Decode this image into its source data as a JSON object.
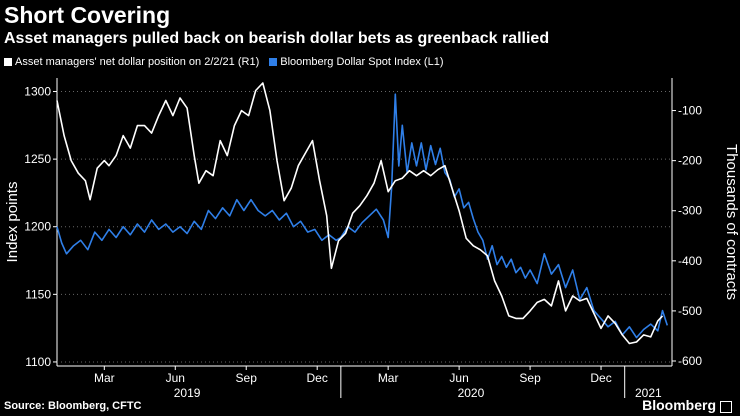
{
  "header": {
    "title": "Short Covering",
    "subtitle": "Asset managers pulled back on bearish dollar bets as greenback rallied"
  },
  "legend": [
    {
      "label": "Asset managers' net dollar position on 2/2/21 (R1)",
      "color": "#ffffff"
    },
    {
      "label": "Bloomberg Dollar Spot Index (L1)",
      "color": "#2f7fe8"
    }
  ],
  "footer": {
    "source": "Source: Bloomberg, CFTC",
    "logo": "Bloomberg"
  },
  "chart_data": {
    "type": "line",
    "time_range": [
      0,
      26
    ],
    "x_month_ticks": [
      "Mar",
      "Jun",
      "Sep",
      "Dec",
      "Mar",
      "Jun",
      "Sep",
      "Dec"
    ],
    "x_month_tick_positions": [
      2,
      5,
      8,
      11,
      14,
      17,
      20,
      23
    ],
    "x_year_labels": [
      {
        "label": "2019",
        "center": 5.5
      },
      {
        "label": "2020",
        "center": 17.5
      },
      {
        "label": "2021",
        "center": 25
      }
    ],
    "year_dividers": [
      12,
      24
    ],
    "y_left": {
      "label": "Index points",
      "ticks": [
        1100,
        1150,
        1200,
        1250,
        1300
      ],
      "range": [
        1097,
        1310
      ]
    },
    "y_right": {
      "label": "Thousands of contracts",
      "ticks": [
        "-600",
        "-500",
        "-400",
        "-300",
        "-200",
        "-100"
      ],
      "tick_values": [
        -600,
        -500,
        -400,
        -300,
        -200,
        -100
      ],
      "range": [
        -610,
        -35
      ]
    },
    "grid": "dotted",
    "series": [
      {
        "name": "Bloomberg Dollar Spot Index (L1)",
        "axis": "left",
        "color": "#2f7fe8",
        "points": [
          [
            0,
            1200
          ],
          [
            0.2,
            1188
          ],
          [
            0.4,
            1180
          ],
          [
            0.7,
            1186
          ],
          [
            1.0,
            1190
          ],
          [
            1.3,
            1183
          ],
          [
            1.6,
            1196
          ],
          [
            1.9,
            1190
          ],
          [
            2.2,
            1198
          ],
          [
            2.5,
            1192
          ],
          [
            2.8,
            1200
          ],
          [
            3.1,
            1194
          ],
          [
            3.4,
            1202
          ],
          [
            3.7,
            1196
          ],
          [
            4.0,
            1205
          ],
          [
            4.3,
            1198
          ],
          [
            4.6,
            1202
          ],
          [
            4.9,
            1196
          ],
          [
            5.2,
            1200
          ],
          [
            5.5,
            1195
          ],
          [
            5.8,
            1204
          ],
          [
            6.1,
            1198
          ],
          [
            6.4,
            1212
          ],
          [
            6.7,
            1206
          ],
          [
            7.0,
            1214
          ],
          [
            7.3,
            1208
          ],
          [
            7.6,
            1220
          ],
          [
            7.9,
            1212
          ],
          [
            8.2,
            1220
          ],
          [
            8.5,
            1212
          ],
          [
            8.8,
            1208
          ],
          [
            9.1,
            1212
          ],
          [
            9.4,
            1205
          ],
          [
            9.7,
            1210
          ],
          [
            10.0,
            1200
          ],
          [
            10.3,
            1204
          ],
          [
            10.6,
            1196
          ],
          [
            10.9,
            1198
          ],
          [
            11.2,
            1190
          ],
          [
            11.5,
            1194
          ],
          [
            11.8,
            1190
          ],
          [
            12.0,
            1192
          ],
          [
            12.3,
            1200
          ],
          [
            12.6,
            1196
          ],
          [
            12.9,
            1203
          ],
          [
            13.2,
            1208
          ],
          [
            13.5,
            1213
          ],
          [
            13.8,
            1205
          ],
          [
            14.0,
            1192
          ],
          [
            14.15,
            1230
          ],
          [
            14.3,
            1298
          ],
          [
            14.45,
            1245
          ],
          [
            14.6,
            1275
          ],
          [
            14.8,
            1240
          ],
          [
            15.0,
            1262
          ],
          [
            15.2,
            1245
          ],
          [
            15.4,
            1262
          ],
          [
            15.6,
            1242
          ],
          [
            15.8,
            1260
          ],
          [
            16.0,
            1246
          ],
          [
            16.2,
            1258
          ],
          [
            16.4,
            1240
          ],
          [
            16.6,
            1235
          ],
          [
            16.8,
            1222
          ],
          [
            17.0,
            1228
          ],
          [
            17.2,
            1214
          ],
          [
            17.4,
            1218
          ],
          [
            17.6,
            1206
          ],
          [
            17.8,
            1196
          ],
          [
            18.0,
            1190
          ],
          [
            18.2,
            1176
          ],
          [
            18.4,
            1186
          ],
          [
            18.6,
            1172
          ],
          [
            18.8,
            1178
          ],
          [
            19.0,
            1170
          ],
          [
            19.2,
            1176
          ],
          [
            19.4,
            1166
          ],
          [
            19.6,
            1170
          ],
          [
            19.8,
            1162
          ],
          [
            20.0,
            1168
          ],
          [
            20.3,
            1158
          ],
          [
            20.6,
            1180
          ],
          [
            20.9,
            1165
          ],
          [
            21.2,
            1172
          ],
          [
            21.5,
            1155
          ],
          [
            21.8,
            1168
          ],
          [
            22.1,
            1146
          ],
          [
            22.4,
            1155
          ],
          [
            22.7,
            1138
          ],
          [
            23.0,
            1132
          ],
          [
            23.3,
            1126
          ],
          [
            23.6,
            1130
          ],
          [
            23.9,
            1120
          ],
          [
            24.2,
            1126
          ],
          [
            24.5,
            1118
          ],
          [
            24.8,
            1124
          ],
          [
            25.1,
            1128
          ],
          [
            25.4,
            1123
          ],
          [
            25.6,
            1138
          ],
          [
            25.8,
            1127
          ]
        ]
      },
      {
        "name": "Asset managers' net dollar position on 2/2/21 (R1)",
        "axis": "right",
        "color": "#ffffff",
        "points": [
          [
            0,
            -80
          ],
          [
            0.3,
            -150
          ],
          [
            0.6,
            -200
          ],
          [
            0.9,
            -225
          ],
          [
            1.2,
            -240
          ],
          [
            1.4,
            -278
          ],
          [
            1.7,
            -215
          ],
          [
            2.0,
            -200
          ],
          [
            2.2,
            -210
          ],
          [
            2.5,
            -190
          ],
          [
            2.8,
            -150
          ],
          [
            3.1,
            -175
          ],
          [
            3.4,
            -130
          ],
          [
            3.7,
            -130
          ],
          [
            4.0,
            -145
          ],
          [
            4.3,
            -110
          ],
          [
            4.6,
            -80
          ],
          [
            4.9,
            -110
          ],
          [
            5.2,
            -75
          ],
          [
            5.5,
            -95
          ],
          [
            5.8,
            -190
          ],
          [
            6.0,
            -245
          ],
          [
            6.3,
            -220
          ],
          [
            6.6,
            -230
          ],
          [
            6.9,
            -160
          ],
          [
            7.2,
            -190
          ],
          [
            7.5,
            -130
          ],
          [
            7.8,
            -100
          ],
          [
            8.1,
            -110
          ],
          [
            8.4,
            -60
          ],
          [
            8.7,
            -45
          ],
          [
            9.0,
            -100
          ],
          [
            9.3,
            -200
          ],
          [
            9.6,
            -280
          ],
          [
            9.9,
            -255
          ],
          [
            10.2,
            -210
          ],
          [
            10.5,
            -185
          ],
          [
            10.8,
            -160
          ],
          [
            11.1,
            -240
          ],
          [
            11.4,
            -310
          ],
          [
            11.6,
            -415
          ],
          [
            11.9,
            -360
          ],
          [
            12.2,
            -345
          ],
          [
            12.5,
            -305
          ],
          [
            12.8,
            -290
          ],
          [
            13.1,
            -270
          ],
          [
            13.4,
            -245
          ],
          [
            13.7,
            -200
          ],
          [
            14.0,
            -262
          ],
          [
            14.3,
            -240
          ],
          [
            14.6,
            -235
          ],
          [
            14.9,
            -220
          ],
          [
            15.2,
            -230
          ],
          [
            15.5,
            -220
          ],
          [
            15.8,
            -230
          ],
          [
            16.1,
            -218
          ],
          [
            16.4,
            -210
          ],
          [
            16.7,
            -255
          ],
          [
            17.0,
            -300
          ],
          [
            17.3,
            -355
          ],
          [
            17.6,
            -370
          ],
          [
            17.9,
            -378
          ],
          [
            18.2,
            -390
          ],
          [
            18.5,
            -440
          ],
          [
            18.8,
            -470
          ],
          [
            19.1,
            -510
          ],
          [
            19.4,
            -515
          ],
          [
            19.7,
            -515
          ],
          [
            20.0,
            -500
          ],
          [
            20.3,
            -483
          ],
          [
            20.6,
            -477
          ],
          [
            20.9,
            -490
          ],
          [
            21.2,
            -440
          ],
          [
            21.5,
            -500
          ],
          [
            21.8,
            -470
          ],
          [
            22.1,
            -480
          ],
          [
            22.4,
            -475
          ],
          [
            22.7,
            -505
          ],
          [
            23.0,
            -535
          ],
          [
            23.3,
            -510
          ],
          [
            23.6,
            -525
          ],
          [
            23.9,
            -548
          ],
          [
            24.2,
            -565
          ],
          [
            24.5,
            -562
          ],
          [
            24.8,
            -548
          ],
          [
            25.1,
            -552
          ],
          [
            25.4,
            -520
          ],
          [
            25.6,
            -510
          ]
        ]
      }
    ]
  }
}
